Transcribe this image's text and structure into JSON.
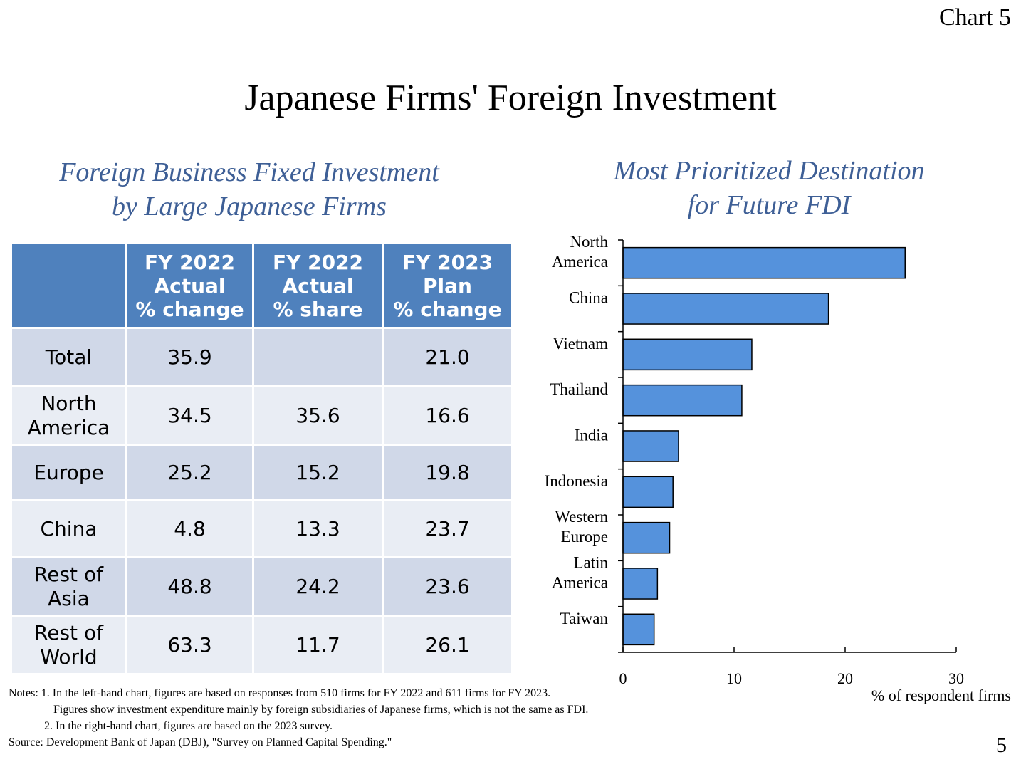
{
  "chart_number": "Chart 5",
  "title": "Japanese Firms' Foreign Investment",
  "left_panel": {
    "subtitle_lines": [
      "Foreign Business Fixed Investment",
      "by Large Japanese Firms"
    ],
    "table": {
      "headers": [
        [],
        [
          "FY 2022",
          "Actual",
          "% change"
        ],
        [
          "FY 2022",
          "Actual",
          "% share"
        ],
        [
          "FY 2023",
          "Plan",
          "% change"
        ]
      ],
      "rows": [
        {
          "label": [
            "Total"
          ],
          "values": [
            "35.9",
            "",
            "21.0"
          ]
        },
        {
          "label": [
            "North",
            "America"
          ],
          "values": [
            "34.5",
            "35.6",
            "16.6"
          ]
        },
        {
          "label": [
            "Europe"
          ],
          "values": [
            "25.2",
            "15.2",
            "19.8"
          ]
        },
        {
          "label": [
            "China"
          ],
          "values": [
            "4.8",
            "13.3",
            "23.7"
          ]
        },
        {
          "label": [
            "Rest of",
            "Asia"
          ],
          "values": [
            "48.8",
            "24.2",
            "23.6"
          ]
        },
        {
          "label": [
            "Rest of",
            "World"
          ],
          "values": [
            "63.3",
            "11.7",
            "26.1"
          ]
        }
      ]
    }
  },
  "right_panel": {
    "subtitle_lines": [
      "Most Prioritized Destination",
      "for Future FDI"
    ]
  },
  "chart_data": {
    "type": "bar",
    "orientation": "horizontal",
    "title": "Most Prioritized Destination for Future FDI",
    "categories": [
      [
        "North",
        "America"
      ],
      [
        "China"
      ],
      [
        "Vietnam"
      ],
      [
        "Thailand"
      ],
      [
        "India"
      ],
      [
        "Indonesia"
      ],
      [
        "Western",
        "Europe"
      ],
      [
        "Latin",
        "America"
      ],
      [
        "Taiwan"
      ]
    ],
    "values": [
      25.4,
      18.5,
      11.6,
      10.7,
      5.0,
      4.5,
      4.2,
      3.1,
      2.8
    ],
    "xlim": [
      0,
      30
    ],
    "xticks": [
      "0",
      "10",
      "20",
      "30"
    ],
    "xlabel": "% of respondent  firms",
    "bar_color": "#5592dc",
    "grid": false
  },
  "notes": [
    "Notes: 1. In the left-hand chart, figures are based on responses from 510 firms for FY 2022 and 611 firms for FY 2023.",
    "Figures show investment expenditure mainly by foreign subsidiaries of Japanese firms, which is not the same as FDI.",
    "2. In the right-hand chart, figures are based on the 2023 survey.",
    "Source: Development Bank of Japan (DBJ), \"Survey on Planned Capital Spending.\""
  ],
  "page_number": "5",
  "colors": {
    "subtitle": "#3e5f96",
    "header": "#4f81bd",
    "row_dark": "#d0d8e8",
    "row_light": "#e9edf4"
  }
}
